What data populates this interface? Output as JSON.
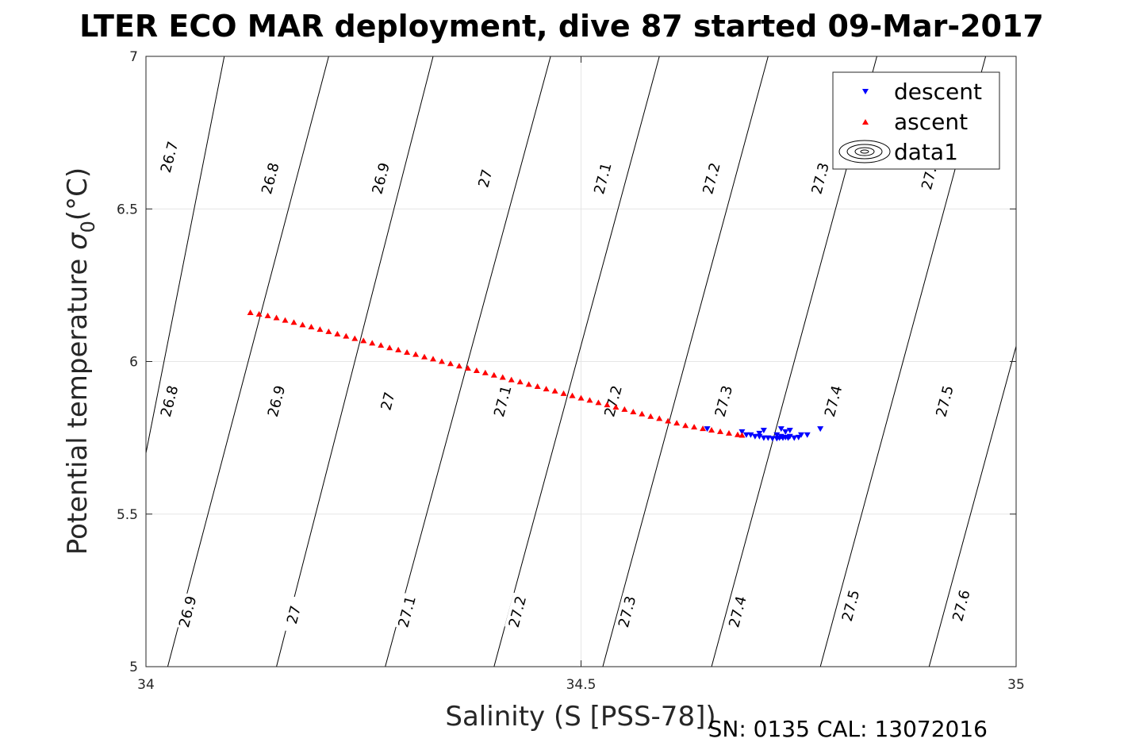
{
  "chart_data": {
    "type": "scatter",
    "title": "LTER ECO MAR deployment, dive 87 started 09-Mar-2017",
    "xlabel": "Salinity (S [PSS-78])",
    "ylabel": "Potential temperature",
    "ylabel_symbol": "σ",
    "ylabel_sub": "0",
    "ylabel_unit": "(°C)",
    "footer": "SN: 0135  CAL: 13072016",
    "xlim": [
      34,
      35
    ],
    "ylim": [
      5,
      7
    ],
    "xticks": [
      34,
      34.5,
      35
    ],
    "xtick_labels": [
      "34",
      "34.5",
      "35"
    ],
    "yticks": [
      5,
      5.5,
      6,
      6.5,
      7
    ],
    "ytick_labels": [
      "5",
      "5.5",
      "6",
      "6.5",
      "7"
    ],
    "grid": true,
    "legend_position": "top-right",
    "legend": [
      "descent",
      "ascent",
      "data1"
    ],
    "series": [
      {
        "name": "descent",
        "marker": "triangle-down",
        "color": "#0000ff",
        "x": [
          34.645,
          34.685,
          34.69,
          34.695,
          34.7,
          34.705,
          34.71,
          34.715,
          34.72,
          34.725,
          34.728,
          34.73,
          34.732,
          34.735,
          34.738,
          34.74,
          34.745,
          34.75,
          34.753,
          34.71,
          34.73,
          34.74,
          34.76,
          34.705,
          34.725,
          34.735,
          34.775
        ],
        "y": [
          5.78,
          5.77,
          5.76,
          5.76,
          5.755,
          5.755,
          5.75,
          5.75,
          5.748,
          5.748,
          5.75,
          5.755,
          5.75,
          5.752,
          5.75,
          5.755,
          5.75,
          5.752,
          5.76,
          5.775,
          5.78,
          5.775,
          5.76,
          5.765,
          5.76,
          5.77,
          5.78
        ]
      },
      {
        "name": "ascent",
        "marker": "triangle-up",
        "color": "#ff0000",
        "x": [
          34.12,
          34.13,
          34.14,
          34.15,
          34.16,
          34.17,
          34.18,
          34.19,
          34.2,
          34.21,
          34.22,
          34.23,
          34.24,
          34.25,
          34.26,
          34.27,
          34.28,
          34.29,
          34.3,
          34.31,
          34.32,
          34.33,
          34.34,
          34.35,
          34.36,
          34.37,
          34.38,
          34.39,
          34.4,
          34.41,
          34.42,
          34.43,
          34.44,
          34.45,
          34.46,
          34.47,
          34.48,
          34.49,
          34.5,
          34.51,
          34.52,
          34.53,
          34.54,
          34.55,
          34.56,
          34.57,
          34.58,
          34.59,
          34.6,
          34.61,
          34.62,
          34.63,
          34.64,
          34.65,
          34.66,
          34.67,
          34.68,
          34.685
        ],
        "y": [
          6.16,
          6.155,
          6.15,
          6.143,
          6.135,
          6.128,
          6.12,
          6.113,
          6.105,
          6.098,
          6.09,
          6.083,
          6.075,
          6.068,
          6.06,
          6.053,
          6.045,
          6.038,
          6.03,
          6.023,
          6.015,
          6.008,
          6.0,
          5.993,
          5.985,
          5.978,
          5.97,
          5.963,
          5.955,
          5.948,
          5.94,
          5.933,
          5.925,
          5.918,
          5.91,
          5.903,
          5.895,
          5.888,
          5.88,
          5.873,
          5.865,
          5.858,
          5.85,
          5.843,
          5.835,
          5.828,
          5.82,
          5.813,
          5.805,
          5.798,
          5.79,
          5.785,
          5.78,
          5.775,
          5.77,
          5.765,
          5.76,
          5.758
        ]
      }
    ],
    "contours": [
      {
        "level": "26.7",
        "s": [
          34.0,
          34.09
        ],
        "t": [
          5.7,
          7.0
        ]
      },
      {
        "level": "26.8",
        "s": [
          34.025,
          34.21
        ],
        "t": [
          5.0,
          7.0
        ]
      },
      {
        "level": "26.9",
        "s": [
          34.15,
          34.33
        ],
        "t": [
          5.0,
          7.0
        ]
      },
      {
        "level": "27",
        "s": [
          34.275,
          34.465
        ],
        "t": [
          5.0,
          7.0
        ]
      },
      {
        "level": "27.1",
        "s": [
          34.4,
          34.59
        ],
        "t": [
          5.0,
          7.0
        ]
      },
      {
        "level": "27.2",
        "s": [
          34.525,
          34.715
        ],
        "t": [
          5.0,
          7.0
        ]
      },
      {
        "level": "27.3",
        "s": [
          34.65,
          34.84
        ],
        "t": [
          5.0,
          7.0
        ]
      },
      {
        "level": "27.4",
        "s": [
          34.775,
          34.965
        ],
        "t": [
          5.0,
          7.0
        ]
      },
      {
        "level": "27.5",
        "s": [
          34.9,
          35.0
        ],
        "t": [
          5.0,
          6.05
        ]
      },
      {
        "level": "27.6",
        "s": [
          35.0,
          35.0
        ],
        "t": [
          5.6,
          5.6
        ]
      }
    ],
    "contour_labels": [
      {
        "text": "26.7",
        "x": 34.027,
        "y": 6.67
      },
      {
        "text": "26.8",
        "x": 34.143,
        "y": 6.6
      },
      {
        "text": "26.9",
        "x": 34.27,
        "y": 6.6
      },
      {
        "text": "27",
        "x": 34.39,
        "y": 6.6
      },
      {
        "text": "27.1",
        "x": 34.525,
        "y": 6.6
      },
      {
        "text": "27.2",
        "x": 34.65,
        "y": 6.6
      },
      {
        "text": "27.3",
        "x": 34.775,
        "y": 6.6
      },
      {
        "text": "27.",
        "x": 34.9,
        "y": 6.6
      },
      {
        "text": "26.8",
        "x": 34.027,
        "y": 5.87
      },
      {
        "text": "26.9",
        "x": 34.15,
        "y": 5.87
      },
      {
        "text": "27",
        "x": 34.278,
        "y": 5.87
      },
      {
        "text": "27.1",
        "x": 34.41,
        "y": 5.87
      },
      {
        "text": "27.2",
        "x": 34.537,
        "y": 5.87
      },
      {
        "text": "27.3",
        "x": 34.664,
        "y": 5.87
      },
      {
        "text": "27.4",
        "x": 34.79,
        "y": 5.87
      },
      {
        "text": "27.5",
        "x": 34.918,
        "y": 5.87
      },
      {
        "text": "26.9",
        "x": 34.048,
        "y": 5.18
      },
      {
        "text": "27",
        "x": 34.17,
        "y": 5.17
      },
      {
        "text": "27.1",
        "x": 34.3,
        "y": 5.18
      },
      {
        "text": "27.2",
        "x": 34.427,
        "y": 5.18
      },
      {
        "text": "27.3",
        "x": 34.553,
        "y": 5.18
      },
      {
        "text": "27.4",
        "x": 34.68,
        "y": 5.18
      },
      {
        "text": "27.5",
        "x": 34.81,
        "y": 5.2
      },
      {
        "text": "27.6",
        "x": 34.937,
        "y": 5.2
      }
    ],
    "colors": {
      "descent": "#0000ff",
      "ascent": "#ff0000",
      "contour": "#000000",
      "grid": "#e6e6e6",
      "axis": "#262626"
    }
  }
}
